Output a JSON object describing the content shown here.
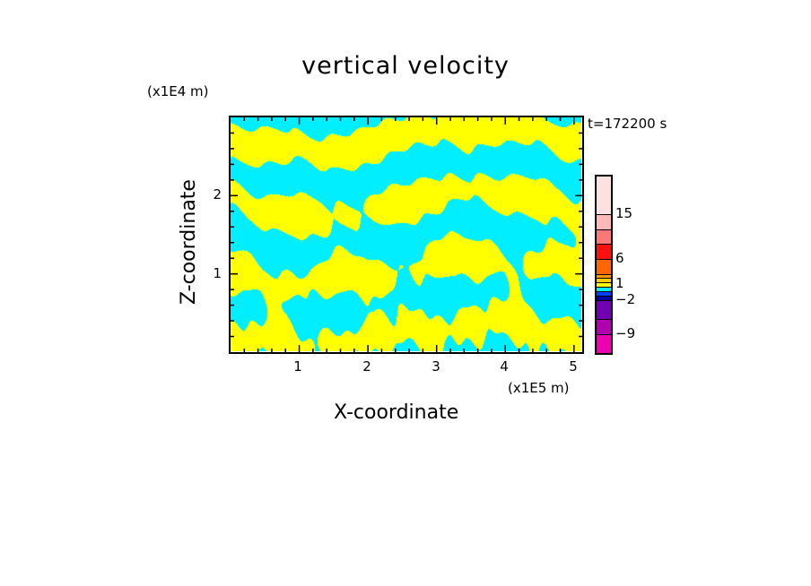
{
  "chart_data": {
    "type": "heatmap",
    "title": "vertical velocity",
    "xlabel": "X-coordinate",
    "ylabel": "Z-coordinate",
    "x_unit": "(x1E5 m)",
    "z_unit": "(x1E4 m)",
    "time_label": "t=172200 s",
    "xlim": [
      0,
      5.12
    ],
    "ylim": [
      0,
      3.0
    ],
    "x_ticks": [
      "1",
      "2",
      "3",
      "4",
      "5"
    ],
    "x_tick_values": [
      1,
      2,
      3,
      4,
      5
    ],
    "y_ticks": [
      "1",
      "2"
    ],
    "y_tick_values": [
      1,
      2
    ],
    "dominant_colors": [
      "#ffff00",
      "#00eeff"
    ],
    "colorbar": {
      "labels": [
        "15",
        "6",
        "1",
        "−2",
        "−9"
      ],
      "colors_top_to_bottom": [
        "#ffe0e0",
        "#ffb8b8",
        "#ff7878",
        "#ff1010",
        "#ff6600",
        "#ff9900",
        "#ffcc00",
        "#ffff00",
        "#00eeff",
        "#0040ff",
        "#0000a0",
        "#7000b0",
        "#b000b0",
        "#ee00b0"
      ]
    }
  }
}
